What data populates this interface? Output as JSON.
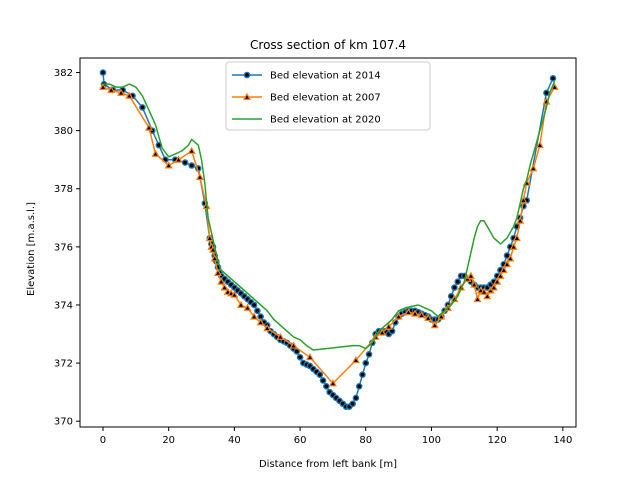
{
  "chart_data": {
    "type": "line",
    "title": "Cross section of km 107.4",
    "xlabel": "Distance from left bank [m]",
    "ylabel": "Elevation [m.a.s.l.]",
    "xlim": [
      -7,
      144
    ],
    "ylim": [
      369.8,
      382.5
    ],
    "xticks": [
      0,
      20,
      40,
      60,
      80,
      100,
      120,
      140
    ],
    "yticks": [
      370,
      372,
      374,
      376,
      378,
      380,
      382
    ],
    "legend": "upper-center",
    "grid": false,
    "series": [
      {
        "name": "Bed elevation at 2014",
        "color": "#1f77b4",
        "marker": "circle",
        "x": [
          0,
          0.3,
          3,
          6,
          9,
          12,
          15,
          17,
          19,
          22,
          25,
          27,
          29,
          31,
          32.5,
          33,
          33.5,
          34,
          34.5,
          35,
          35.5,
          36,
          37,
          38,
          39,
          40,
          41,
          42,
          43,
          44,
          45,
          46,
          47,
          48,
          49,
          50,
          51,
          52,
          53,
          54,
          55,
          56,
          57,
          58,
          59,
          60,
          61,
          62,
          63,
          64,
          65,
          66,
          67,
          68,
          69,
          70,
          71,
          72,
          73,
          74,
          75,
          76,
          77,
          78,
          79,
          80,
          81,
          82,
          83,
          84,
          85,
          86,
          87,
          88,
          89,
          90,
          91,
          92,
          93,
          94,
          95,
          96,
          97,
          98,
          99,
          100,
          101,
          102,
          103,
          104,
          105,
          106,
          107,
          108,
          109,
          110,
          111,
          112,
          113,
          114,
          115,
          116,
          117,
          118,
          119,
          120,
          121,
          122,
          123,
          124,
          125,
          126,
          127,
          128,
          129,
          135,
          137
        ],
        "y": [
          382.0,
          381.6,
          381.4,
          381.4,
          381.2,
          380.8,
          380.0,
          379.5,
          379.0,
          379.0,
          378.9,
          378.8,
          378.7,
          377.5,
          376.3,
          376.1,
          376.0,
          375.7,
          375.5,
          375.3,
          375.1,
          375.0,
          374.9,
          374.8,
          374.7,
          374.6,
          374.5,
          374.4,
          374.3,
          374.2,
          374.1,
          374.0,
          373.8,
          373.6,
          373.4,
          373.3,
          373.1,
          373.0,
          372.9,
          372.8,
          372.75,
          372.7,
          372.6,
          372.5,
          372.4,
          372.2,
          372.0,
          371.95,
          371.9,
          371.8,
          371.7,
          371.6,
          371.4,
          371.2,
          371.0,
          370.9,
          370.8,
          370.7,
          370.6,
          370.5,
          370.5,
          370.6,
          370.8,
          371.2,
          371.6,
          372.0,
          372.3,
          372.7,
          373.0,
          373.1,
          373.1,
          373.1,
          373.0,
          373.1,
          373.4,
          373.6,
          373.7,
          373.75,
          373.8,
          373.8,
          373.8,
          373.75,
          373.7,
          373.65,
          373.6,
          373.5,
          373.5,
          373.5,
          373.6,
          373.8,
          374.0,
          374.3,
          374.6,
          374.8,
          375.0,
          375.0,
          374.9,
          374.8,
          374.7,
          374.6,
          374.6,
          374.6,
          374.6,
          374.7,
          374.8,
          375.0,
          375.2,
          375.4,
          375.7,
          376.0,
          376.3,
          376.7,
          377.0,
          377.4,
          377.6,
          381.3,
          381.8
        ]
      },
      {
        "name": "Bed elevation at 2007",
        "color": "#ff7f0e",
        "marker": "triangle",
        "x": [
          0,
          2.5,
          5.5,
          8,
          14,
          16,
          20,
          23,
          27,
          29.5,
          31.5,
          32.5,
          33,
          33.5,
          34,
          35,
          36,
          37,
          38,
          39,
          40,
          42,
          44,
          46,
          48,
          50,
          54,
          58,
          63,
          70,
          77,
          83,
          85,
          87,
          90,
          93,
          95,
          97,
          99,
          101,
          103,
          105,
          107,
          109,
          111,
          112,
          113,
          114,
          115,
          116,
          117,
          118,
          119,
          120,
          121,
          122,
          123,
          124,
          125,
          126,
          127,
          128,
          129,
          131,
          133,
          135,
          137.5
        ],
        "y": [
          381.5,
          381.4,
          381.3,
          381.2,
          380.1,
          379.2,
          378.8,
          379.0,
          379.3,
          378.4,
          377.4,
          376.3,
          376.0,
          375.9,
          375.6,
          375.1,
          374.8,
          374.6,
          374.45,
          374.4,
          374.35,
          374.0,
          373.9,
          373.6,
          373.4,
          373.2,
          372.9,
          372.6,
          372.2,
          371.3,
          372.1,
          372.9,
          373.05,
          373.25,
          373.6,
          373.75,
          373.7,
          373.65,
          373.55,
          373.3,
          373.6,
          373.9,
          374.2,
          374.6,
          374.9,
          375.0,
          374.7,
          374.2,
          374.5,
          374.45,
          374.3,
          374.5,
          374.6,
          374.8,
          375.0,
          375.2,
          375.4,
          375.6,
          376.0,
          376.3,
          376.9,
          377.6,
          378.2,
          378.7,
          379.5,
          381.0,
          381.5
        ]
      },
      {
        "name": "Bed elevation at 2020",
        "color": "#2ca02c",
        "marker": "none",
        "x": [
          0,
          2,
          4,
          6,
          8,
          10,
          12,
          14,
          16,
          18,
          20,
          22,
          24,
          26,
          27,
          28,
          29,
          30,
          31,
          32,
          33,
          34,
          35,
          36,
          37,
          38,
          40,
          42,
          44,
          46,
          48,
          50,
          52,
          54,
          56,
          58,
          60,
          62,
          64,
          68,
          72,
          76,
          78,
          80,
          82,
          84,
          86,
          88,
          90,
          92,
          94,
          96,
          98,
          100,
          102,
          104,
          106,
          108,
          110,
          111,
          112,
          113,
          114,
          115,
          116,
          117,
          118,
          119,
          120,
          121,
          122,
          123,
          124,
          125,
          126,
          127,
          128,
          129,
          130,
          131,
          132,
          133,
          134,
          135,
          136,
          137.5
        ],
        "y": [
          381.6,
          381.6,
          381.5,
          381.5,
          381.6,
          381.5,
          381.2,
          380.7,
          380.2,
          379.4,
          379.1,
          379.2,
          379.3,
          379.5,
          379.7,
          379.6,
          379.5,
          379.0,
          378.2,
          377.0,
          376.5,
          376.0,
          375.5,
          375.2,
          375.1,
          375.0,
          374.8,
          374.6,
          374.4,
          374.2,
          374.0,
          373.8,
          373.5,
          373.3,
          373.1,
          372.9,
          372.8,
          372.6,
          372.45,
          372.5,
          372.55,
          372.6,
          372.6,
          372.5,
          372.7,
          373.1,
          373.3,
          373.5,
          373.8,
          373.9,
          373.95,
          374.0,
          373.9,
          373.8,
          373.6,
          373.8,
          374.0,
          374.3,
          374.8,
          375.3,
          375.8,
          376.3,
          376.7,
          376.9,
          376.9,
          376.7,
          376.5,
          376.3,
          376.2,
          376.1,
          376.2,
          376.3,
          376.5,
          376.7,
          377.0,
          377.5,
          378.0,
          378.3,
          378.8,
          379.2,
          379.6,
          380.0,
          380.4,
          380.8,
          381.3,
          381.7
        ]
      }
    ]
  }
}
